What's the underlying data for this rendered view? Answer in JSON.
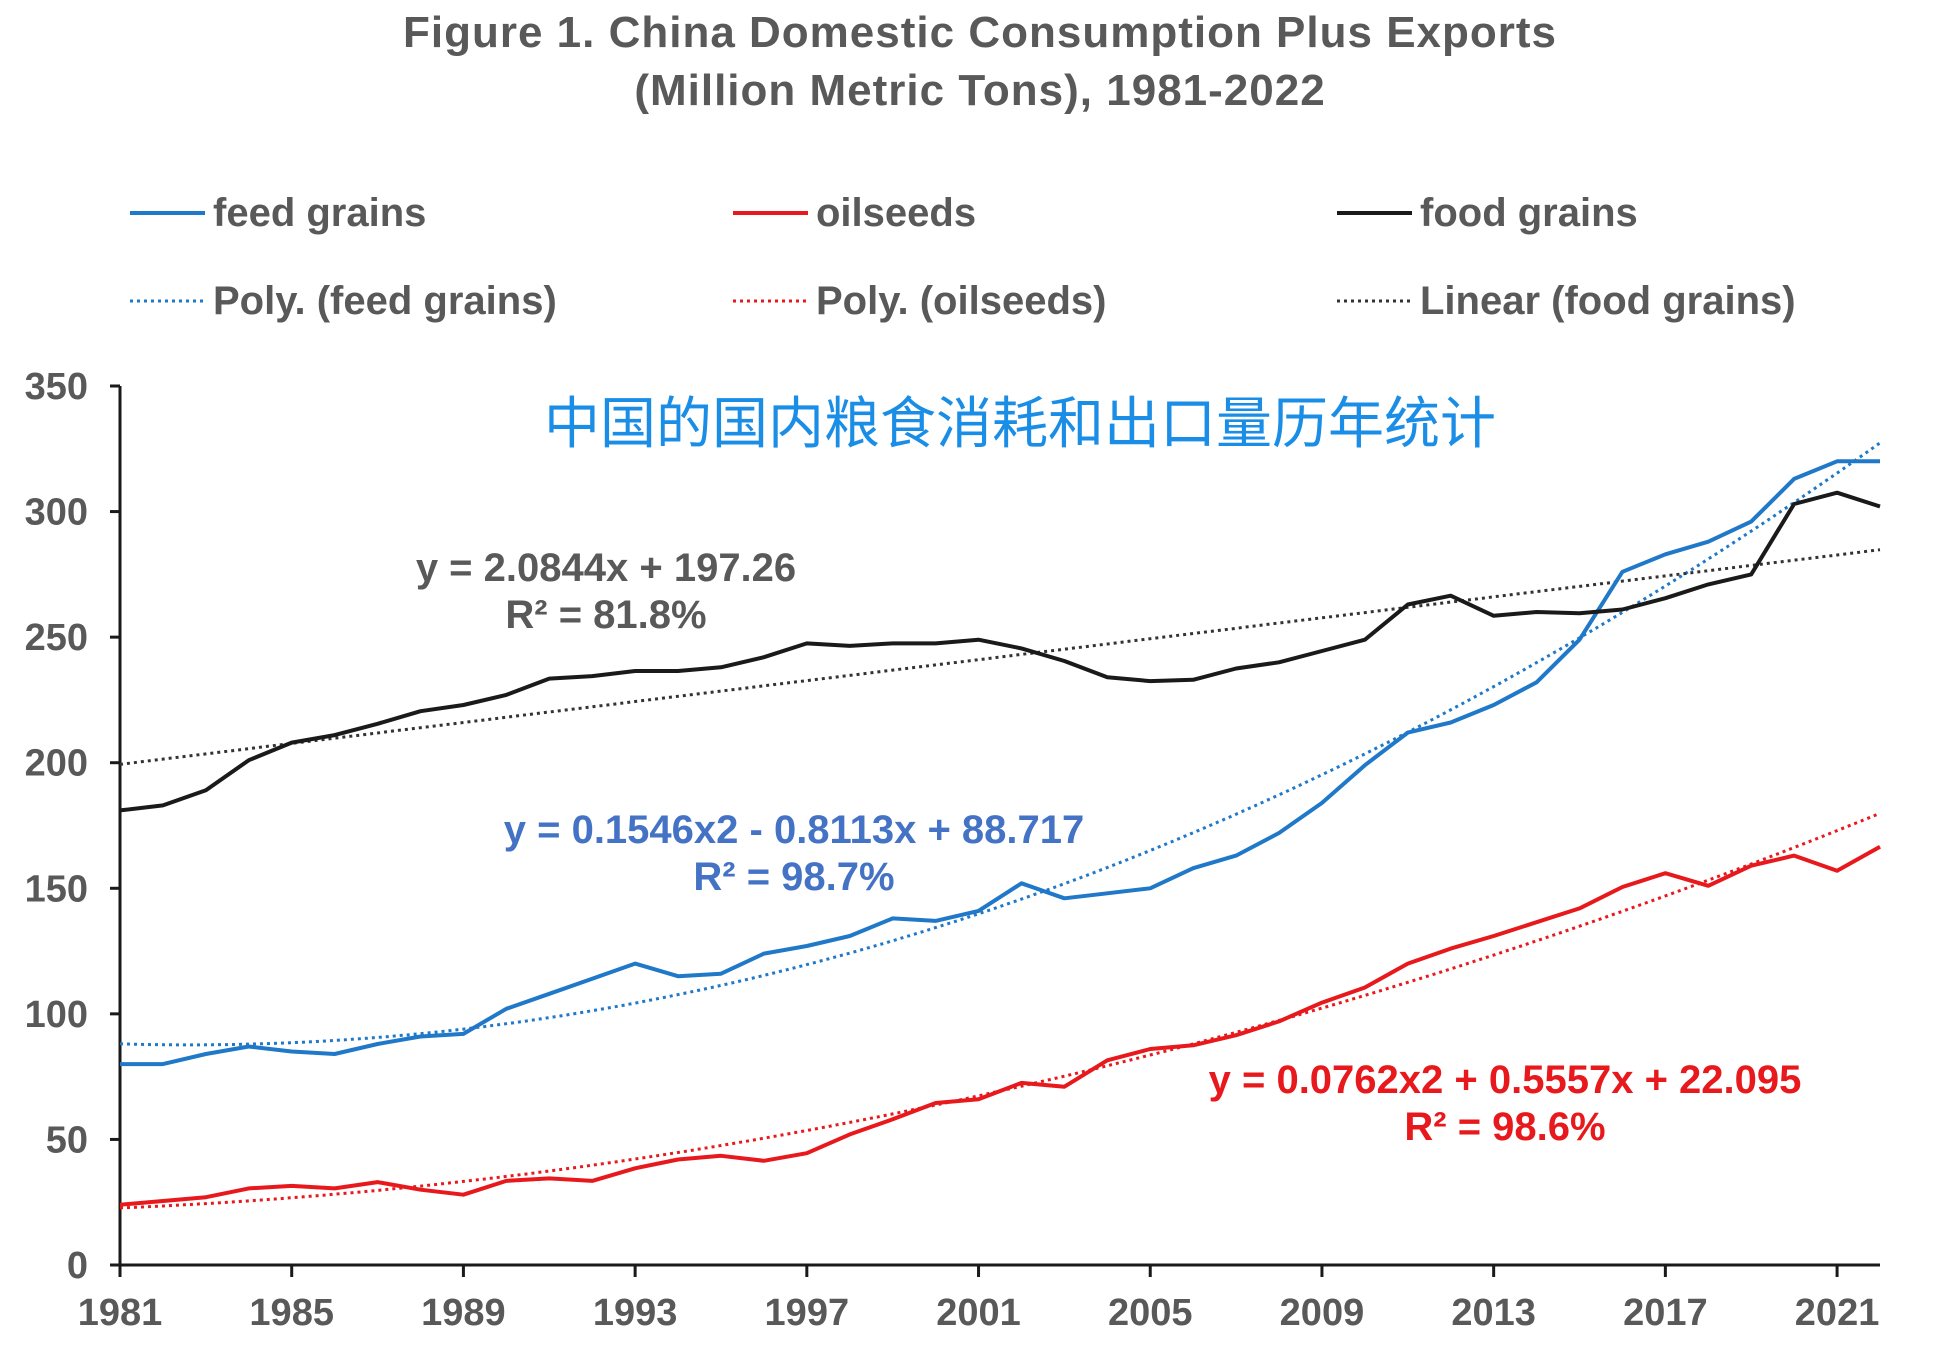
{
  "chart_data": {
    "type": "line",
    "title": "Figure 1. China Domestic Consumption Plus Exports",
    "subtitle": "(Million Metric Tons), 1981-2022",
    "annotation_cn": "中国的国内粮食消耗和出口量历年统计",
    "xlim": [
      1981,
      2022
    ],
    "ylim": [
      0,
      350
    ],
    "x_ticks": [
      1981,
      1985,
      1989,
      1993,
      1997,
      2001,
      2005,
      2009,
      2013,
      2017,
      2021
    ],
    "y_ticks": [
      0,
      50,
      100,
      150,
      200,
      250,
      300,
      350
    ],
    "x": [
      1981,
      1982,
      1983,
      1984,
      1985,
      1986,
      1987,
      1988,
      1989,
      1990,
      1991,
      1992,
      1993,
      1994,
      1995,
      1996,
      1997,
      1998,
      1999,
      2000,
      2001,
      2002,
      2003,
      2004,
      2005,
      2006,
      2007,
      2008,
      2009,
      2010,
      2011,
      2012,
      2013,
      2014,
      2015,
      2016,
      2017,
      2018,
      2019,
      2020,
      2021,
      2022
    ],
    "series": [
      {
        "name": "feed grains",
        "color": "#1f78c8",
        "values": [
          80,
          80,
          84,
          87,
          85,
          84,
          88,
          91,
          92,
          102,
          108,
          114,
          120,
          115,
          116,
          124,
          127,
          131,
          138,
          137,
          141,
          152,
          146,
          148,
          150,
          158,
          163,
          172,
          184,
          199,
          212,
          216,
          223,
          232,
          249,
          276,
          283,
          288,
          296,
          313,
          320,
          320
        ]
      },
      {
        "name": "oilseeds",
        "color": "#e8191c",
        "values": [
          24,
          25.5,
          27,
          30.5,
          31.5,
          30.5,
          33,
          30,
          28,
          33.5,
          34.5,
          33.5,
          38.5,
          42,
          43.5,
          41.5,
          44.5,
          52,
          58,
          64.5,
          66,
          72.5,
          71,
          81.5,
          86,
          87.5,
          91.5,
          97,
          104.5,
          110.5,
          120,
          126,
          131,
          136.5,
          142,
          150.5,
          156,
          151,
          159,
          163,
          157,
          166.5
        ]
      },
      {
        "name": "food grains",
        "color": "#1a1a1a",
        "values": [
          181,
          183,
          189,
          201,
          208,
          211,
          215.5,
          220.5,
          223,
          227,
          233.5,
          234.5,
          236.5,
          236.5,
          238,
          242,
          247.5,
          246.5,
          247.5,
          247.5,
          249,
          245.5,
          240.5,
          234,
          232.5,
          233,
          237.5,
          240,
          244.5,
          249,
          263,
          266.5,
          258.5,
          260,
          259.5,
          261,
          265.5,
          271,
          275,
          303,
          307.5,
          302
        ]
      }
    ],
    "trendlines": [
      {
        "name": "Poly. (feed grains)",
        "type": "poly",
        "color": "#1f78c8",
        "coef": [
          0.1546,
          -0.8113,
          88.717
        ],
        "equation": "y = 0.1546x2 - 0.8113x + 88.717",
        "r2_label": "R² = 98.7%",
        "label_color": "#4472c4"
      },
      {
        "name": "Poly. (oilseeds)",
        "type": "poly",
        "color": "#e8191c",
        "coef": [
          0.0762,
          0.5557,
          22.095
        ],
        "equation": "y = 0.0762x2 + 0.5557x + 22.095",
        "r2_label": "R² = 98.6%",
        "label_color": "#e8191c"
      },
      {
        "name": "Linear (food grains)",
        "type": "linear",
        "color": "#333333",
        "coef": [
          0,
          2.0844,
          197.26
        ],
        "equation": "y = 2.0844x + 197.26",
        "r2_label": "R² = 81.8%",
        "label_color": "#595959"
      }
    ],
    "legend": {
      "placement": "top",
      "entries": [
        "feed grains",
        "oilseeds",
        "food grains",
        "Poly. (feed grains)",
        "Poly. (oilseeds)",
        "Linear (food grains)"
      ]
    },
    "grid": false
  }
}
